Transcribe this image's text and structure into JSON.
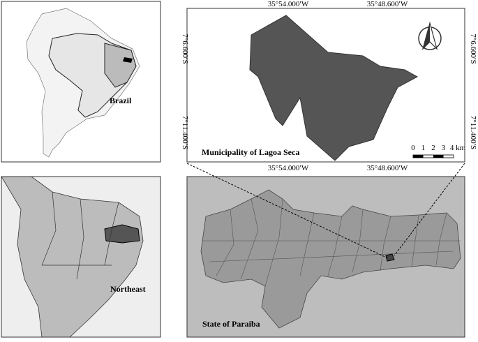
{
  "panels": {
    "brazil": {
      "label": "Brazil"
    },
    "northeast": {
      "label": "Northeast"
    },
    "municipality": {
      "label": "Municipality of Lagoa Seca"
    },
    "state": {
      "label": "State of Paraiba"
    }
  },
  "coordinates": {
    "longitude": [
      "35°54.000′W",
      "35°48.600′W"
    ],
    "latitude": [
      "7°6.600′S",
      "7°11.400′S"
    ]
  },
  "scale_bar": {
    "labels": [
      "0",
      "1",
      "2",
      "3",
      "4 km"
    ]
  }
}
